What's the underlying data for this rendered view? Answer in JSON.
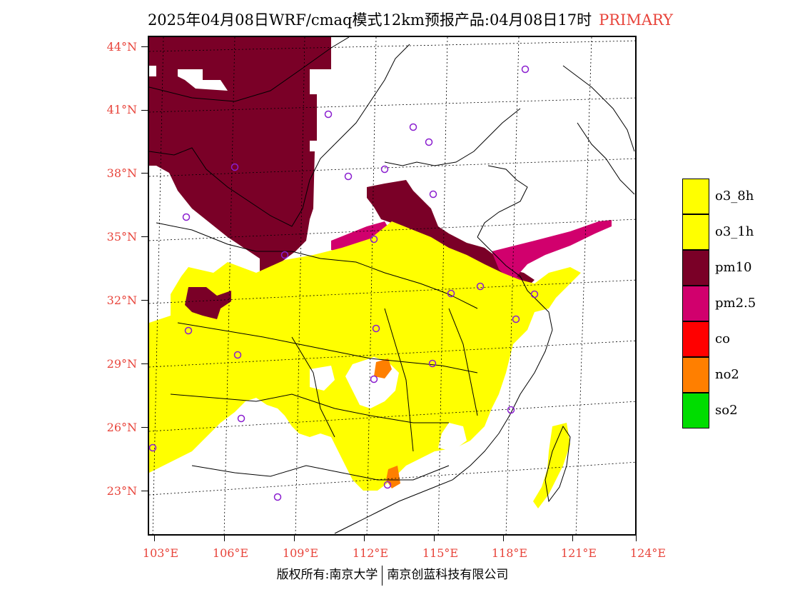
{
  "title": {
    "main": "2025年04月08日WRF/cmaq模式12km预报产品:04月08日17时",
    "tag": "PRIMARY"
  },
  "axes": {
    "lat_labels": [
      "44°N",
      "41°N",
      "38°N",
      "35°N",
      "32°N",
      "29°N",
      "26°N",
      "23°N"
    ],
    "lon_labels": [
      "103°E",
      "106°E",
      "109°E",
      "112°E",
      "115°E",
      "118°E",
      "121°E",
      "124°E"
    ]
  },
  "legend": {
    "items": [
      {
        "label": "o3_8h",
        "color": "#ffff00"
      },
      {
        "label": "o3_1h",
        "color": "#ffff00"
      },
      {
        "label": "pm10",
        "color": "#7a0027"
      },
      {
        "label": "pm2.5",
        "color": "#d1006d"
      },
      {
        "label": "co",
        "color": "#ff0000"
      },
      {
        "label": "no2",
        "color": "#ff7f00"
      },
      {
        "label": "so2",
        "color": "#00dd00"
      }
    ]
  },
  "footer": {
    "left": "版权所有:南京大学",
    "right": "南京创蓝科技有限公司"
  },
  "colors": {
    "label_red": "#e8443b",
    "station_marker": "#8a1ecf"
  }
}
